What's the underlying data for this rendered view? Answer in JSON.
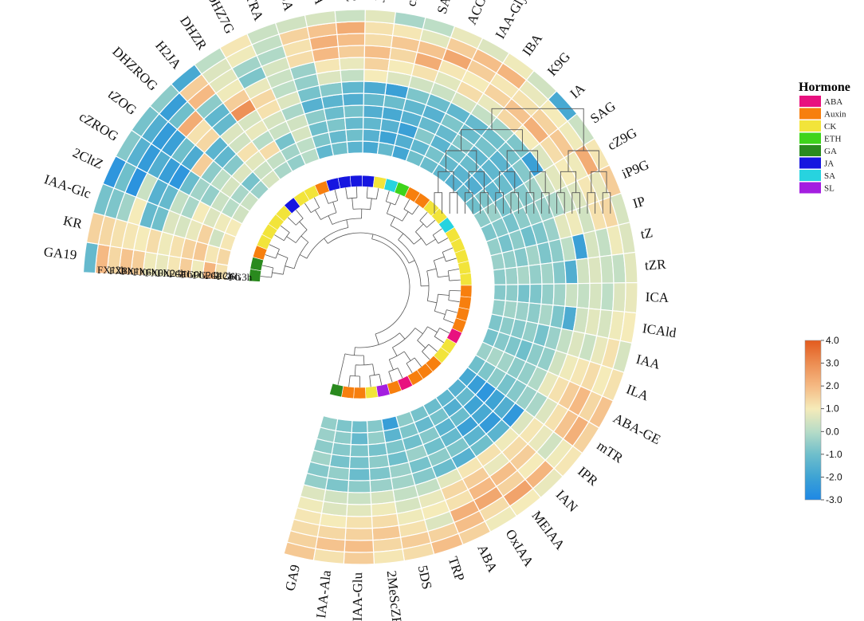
{
  "chart_data": {
    "type": "heatmap",
    "layout": "circular-heatmap-with-dendrogram",
    "hormones": [
      "GA19",
      "KR",
      "IAA-Glc",
      "2CltZ",
      "cZROG",
      "tZOG",
      "DHZROG",
      "H2JA",
      "DHZR",
      "DHZ7G",
      "TRA",
      "JA",
      "OPDA",
      "JA-ILE",
      "JA-Val",
      "cZR",
      "SA",
      "ACC",
      "IAA-Gly",
      "IBA",
      "K9G",
      "IA",
      "SAG",
      "cZ9G",
      "iP9G",
      "IP",
      "tZ",
      "tZR",
      "ICA",
      "ICAld",
      "IAA",
      "ILA",
      "ABA-GE",
      "mTR",
      "IPR",
      "IAN",
      "MEIAA",
      "OxIAA",
      "ABA",
      "TRP",
      "5DS",
      "2MeScZR",
      "IAA-Glu",
      "IAA-Ala",
      "GA9"
    ],
    "hormone_class": [
      "GA",
      "GA",
      "Auxin",
      "CK",
      "CK",
      "CK",
      "CK",
      "JA",
      "CK",
      "CK",
      "Auxin",
      "JA",
      "JA",
      "JA",
      "JA",
      "CK",
      "SA",
      "ETH",
      "Auxin",
      "Auxin",
      "CK",
      "CK",
      "SA",
      "CK",
      "CK",
      "CK",
      "CK",
      "CK",
      "Auxin",
      "Auxin",
      "Auxin",
      "Auxin",
      "ABA",
      "CK",
      "CK",
      "Auxin",
      "Auxin",
      "Auxin",
      "ABA",
      "Auxin",
      "SL",
      "CK",
      "Auxin",
      "Auxin",
      "GA"
    ],
    "samples": [
      "FX12h",
      "FX3h",
      "FX1h",
      "FX6h",
      "FX0h",
      "FX24h",
      "FG1h",
      "FG0h",
      "FG24h",
      "FG12h",
      "FG6h",
      "FG3h"
    ],
    "values": [
      [
        1.2,
        2.1,
        0.9,
        1.6,
        1.1,
        0.8,
        0.9,
        1.6,
        1.8,
        1.4,
        2.0,
        -1.2
      ],
      [
        1.4,
        1.1,
        1.7,
        1.5,
        1.2,
        0.9,
        1.3,
        1.0,
        1.1,
        1.2,
        1.4,
        1.5
      ],
      [
        1.1,
        0.4,
        1.5,
        0.8,
        0.5,
        0.6,
        -1.0,
        -1.2,
        1.0,
        -0.3,
        -0.8,
        -0.9
      ],
      [
        1.0,
        0.9,
        0.6,
        1.0,
        -0.2,
        0.2,
        -1.2,
        -1.5,
        0.3,
        -2.6,
        -1.0,
        -2.5
      ],
      [
        0.4,
        0.0,
        0.3,
        -0.5,
        -0.3,
        -1.1,
        -2.5,
        -2.2,
        -1.6,
        -2.3,
        -1.5,
        -0.7
      ],
      [
        0.3,
        -0.2,
        0.5,
        0.1,
        -0.6,
        1.6,
        -1.7,
        -1.0,
        -2.1,
        -2.3,
        -1.6,
        -0.9
      ],
      [
        -0.4,
        -0.9,
        0.6,
        -0.7,
        -1.3,
        -1.4,
        1.4,
        1.2,
        2.3,
        -1.0,
        -2.2,
        -0.6
      ],
      [
        0.5,
        0.3,
        0.7,
        1.2,
        0.4,
        0.6,
        -1.2,
        -1.3,
        -0.6,
        2.0,
        1.6,
        -1.8
      ],
      [
        -0.2,
        0.2,
        1.3,
        0.0,
        0.8,
        0.5,
        2.9,
        1.6,
        0.9,
        0.7,
        0.6,
        0.1
      ],
      [
        -0.5,
        -0.3,
        -0.9,
        0.3,
        0.5,
        1.2,
        1.4,
        0.8,
        -0.8,
        -0.3,
        0.9,
        1.1
      ],
      [
        0.0,
        0.1,
        0.5,
        0.4,
        -0.2,
        0.6,
        0.1,
        0.3,
        0.5,
        -0.1,
        0.2,
        0.3
      ],
      [
        -1.3,
        -0.8,
        -1.0,
        -0.6,
        -1.5,
        -0.9,
        -0.5,
        -0.4,
        1.3,
        1.2,
        1.5,
        0.4
      ],
      [
        -1.0,
        -1.2,
        -0.8,
        -1.1,
        -1.4,
        -0.7,
        0.6,
        1.1,
        2.0,
        2.2,
        1.8,
        0.5
      ],
      [
        -1.4,
        -1.0,
        -1.2,
        -0.9,
        -1.6,
        -1.3,
        0.2,
        0.8,
        1.6,
        1.9,
        2.3,
        0.3
      ],
      [
        -1.8,
        -1.5,
        -1.3,
        -1.6,
        -1.2,
        -1.7,
        1.0,
        1.5,
        1.9,
        1.3,
        1.2,
        0.7
      ],
      [
        -1.2,
        -2.0,
        -1.5,
        -1.8,
        -1.1,
        -2.1,
        0.6,
        1.0,
        1.4,
        1.7,
        1.1,
        -0.2
      ],
      [
        -1.9,
        -1.6,
        -2.1,
        -1.5,
        -1.3,
        -0.8,
        0.4,
        1.2,
        2.3,
        1.8,
        0.7,
        0.1
      ],
      [
        -1.0,
        -1.3,
        -0.7,
        -1.2,
        -1.5,
        -1.1,
        0.3,
        0.7,
        1.1,
        2.4,
        1.6,
        0.8
      ],
      [
        -1.1,
        -0.9,
        -1.4,
        -1.2,
        -0.8,
        -1.3,
        0.5,
        1.3,
        1.0,
        1.6,
        1.9,
        0.6
      ],
      [
        -1.3,
        -1.2,
        -1.0,
        -0.7,
        -1.1,
        -1.2,
        0.2,
        0.8,
        1.5,
        1.1,
        2.1,
        0.9
      ],
      [
        -1.5,
        -1.4,
        -1.1,
        -1.3,
        -0.9,
        -1.0,
        -0.3,
        1.4,
        1.8,
        1.2,
        0.8,
        0.4
      ],
      [
        -1.2,
        -1.6,
        -1.5,
        -1.3,
        -1.4,
        -0.9,
        -0.8,
        1.0,
        2.2,
        1.5,
        1.0,
        -1.8
      ],
      [
        -1.0,
        -0.8,
        -1.3,
        -1.1,
        -1.5,
        -0.7,
        -2.1,
        0.6,
        1.3,
        1.7,
        0.9,
        0.3
      ],
      [
        -0.6,
        -0.4,
        -0.9,
        -0.5,
        -0.7,
        -0.3,
        0.4,
        0.7,
        1.0,
        0.9,
        2.3,
        1.1
      ],
      [
        -0.8,
        -0.7,
        -0.9,
        -0.6,
        -0.5,
        -0.4,
        -0.2,
        0.3,
        0.6,
        1.1,
        0.8,
        1.6
      ],
      [
        -0.5,
        -0.9,
        -0.6,
        -1.0,
        -0.8,
        -0.4,
        0.7,
        0.9,
        0.4,
        1.2,
        1.4,
        0.5
      ],
      [
        -0.4,
        -0.5,
        -0.7,
        -0.3,
        -0.8,
        -0.6,
        0.1,
        -2.1,
        0.5,
        0.2,
        0.9,
        0.6
      ],
      [
        -0.6,
        -0.4,
        -0.2,
        -0.5,
        -0.3,
        -0.7,
        -1.6,
        0.4,
        0.6,
        0.3,
        0.2,
        0.7
      ],
      [
        -0.7,
        -0.6,
        -0.9,
        -0.8,
        -0.5,
        -0.3,
        0.3,
        0.2,
        0.5,
        0.1,
        0.6,
        0.8
      ],
      [
        -0.5,
        -0.3,
        -0.4,
        -0.6,
        -0.2,
        -0.8,
        -1.7,
        0.4,
        0.7,
        0.5,
        0.9,
        1.0
      ],
      [
        -0.8,
        -0.6,
        -0.7,
        -0.5,
        -0.9,
        -0.4,
        0.2,
        0.6,
        0.3,
        0.8,
        1.2,
        0.5
      ],
      [
        -0.9,
        -0.7,
        -0.8,
        -1.0,
        -0.6,
        -0.5,
        0.4,
        0.9,
        1.1,
        1.3,
        1.0,
        1.2
      ],
      [
        -0.4,
        -0.2,
        -0.3,
        -0.6,
        -0.5,
        -0.1,
        0.8,
        1.2,
        1.6,
        2.0,
        1.4,
        1.8
      ],
      [
        -1.0,
        -0.8,
        -0.6,
        -0.9,
        -0.7,
        -0.4,
        -0.2,
        0.6,
        1.2,
        1.8,
        2.2,
        1.5
      ],
      [
        -1.8,
        -2.2,
        -2.5,
        -2.0,
        -1.6,
        -2.4,
        0.6,
        1.1,
        0.8,
        0.4,
        0.9,
        1.1
      ],
      [
        -1.5,
        -1.2,
        -2.0,
        -1.8,
        -2.3,
        -1.4,
        0.9,
        1.3,
        1.6,
        1.0,
        2.1,
        0.8
      ],
      [
        -1.3,
        -1.6,
        -1.1,
        -2.1,
        -1.4,
        -1.0,
        1.2,
        0.8,
        1.9,
        1.5,
        2.5,
        1.0
      ],
      [
        -1.1,
        -0.9,
        -1.4,
        -1.2,
        -0.8,
        -1.5,
        1.1,
        1.6,
        2.0,
        2.4,
        1.3,
        0.9
      ],
      [
        -0.9,
        -1.2,
        -0.7,
        -1.0,
        -0.6,
        -1.1,
        0.7,
        1.4,
        1.2,
        2.2,
        1.9,
        1.5
      ],
      [
        -0.6,
        -0.8,
        -1.0,
        -0.4,
        -0.9,
        -0.7,
        0.2,
        0.8,
        1.0,
        0.6,
        1.5,
        1.9
      ],
      [
        -2.2,
        -1.4,
        -0.8,
        -1.0,
        -0.4,
        -0.3,
        0.2,
        0.5,
        0.9,
        1.2,
        1.6,
        1.3
      ],
      [
        -0.7,
        -0.5,
        -0.9,
        -0.6,
        -0.8,
        -0.4,
        0.5,
        0.9,
        1.3,
        1.7,
        1.4,
        1.1
      ],
      [
        -1.0,
        -1.2,
        -0.8,
        -0.9,
        -1.1,
        -0.6,
        0.3,
        0.7,
        1.2,
        1.5,
        1.9,
        1.6
      ],
      [
        -0.8,
        -0.6,
        -0.7,
        -0.9,
        -0.5,
        -0.8,
        0.4,
        0.6,
        1.0,
        1.4,
        1.8,
        1.2
      ],
      [
        -0.5,
        -0.4,
        -0.6,
        -0.3,
        -0.7,
        -0.5,
        0.6,
        0.9,
        1.1,
        1.3,
        1.5,
        1.7
      ]
    ],
    "legend_title": "Hormone",
    "classes": [
      {
        "name": "ABA",
        "color": "#e8117f"
      },
      {
        "name": "Auxin",
        "color": "#f77f0e"
      },
      {
        "name": "CK",
        "color": "#f2e43a"
      },
      {
        "name": "ETH",
        "color": "#3ed41b"
      },
      {
        "name": "GA",
        "color": "#2a8a1e"
      },
      {
        "name": "JA",
        "color": "#1616e0"
      },
      {
        "name": "SA",
        "color": "#27d3df"
      },
      {
        "name": "SL",
        "color": "#a41ee0"
      }
    ],
    "color_scale": {
      "min": -3.0,
      "max": 4.0,
      "ticks": [
        "4.0",
        "3.0",
        "2.0",
        "1.0",
        "0.0",
        "-1.0",
        "-2.0",
        "-3.0"
      ],
      "stops": [
        {
          "v": -3.0,
          "c": "#1e88e5"
        },
        {
          "v": -2.0,
          "c": "#3ea3d4"
        },
        {
          "v": -1.0,
          "c": "#6fbfcb"
        },
        {
          "v": 0.0,
          "c": "#b7dcc7"
        },
        {
          "v": 1.0,
          "c": "#f5ebb9"
        },
        {
          "v": 2.0,
          "c": "#f5b983"
        },
        {
          "v": 3.0,
          "c": "#ec8d52"
        },
        {
          "v": 4.0,
          "c": "#e35b1e"
        }
      ]
    }
  }
}
